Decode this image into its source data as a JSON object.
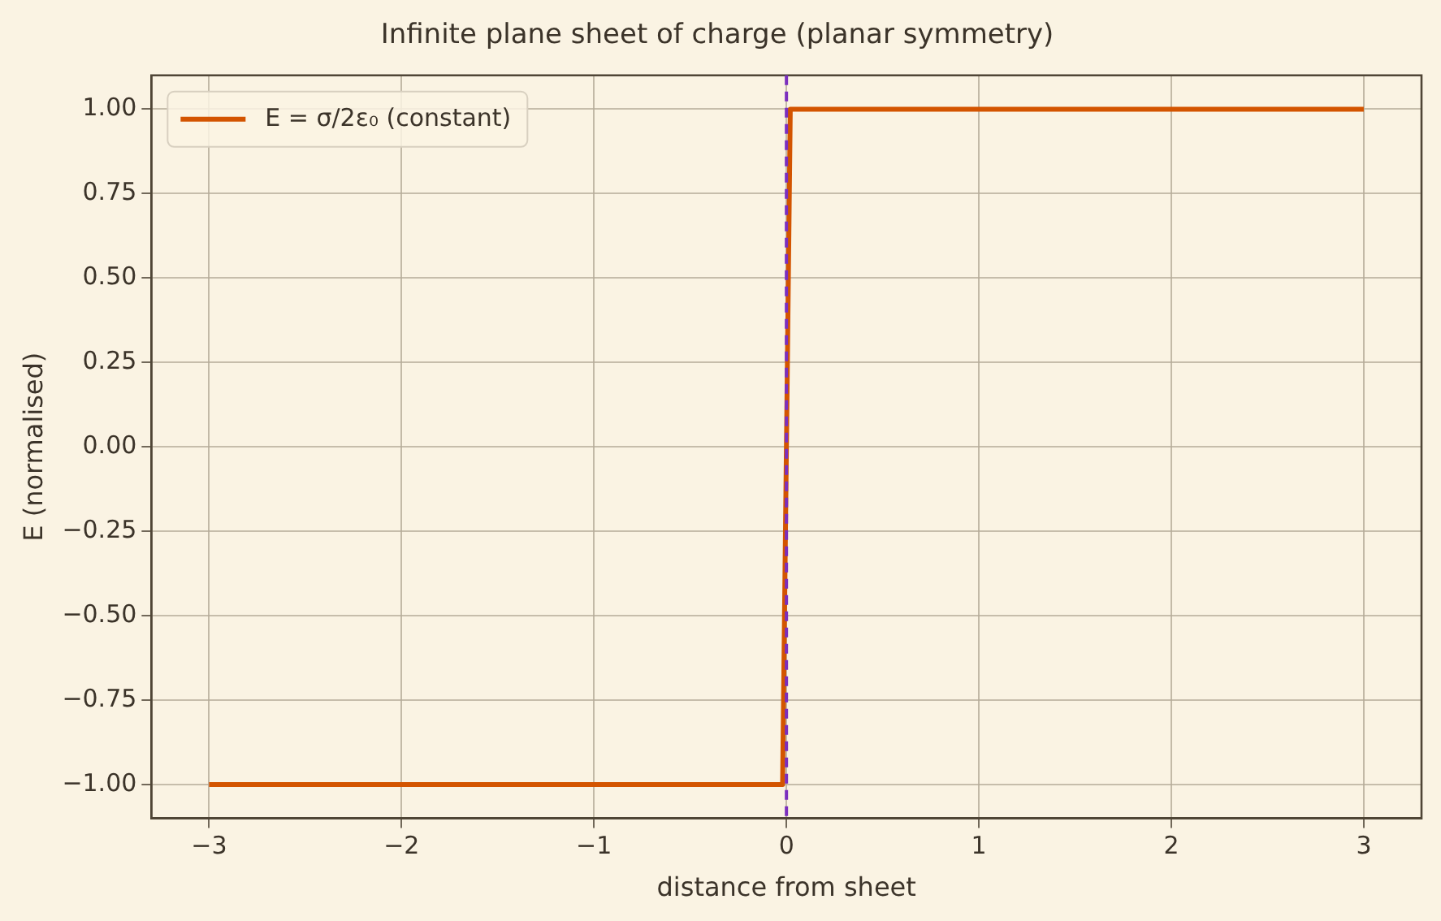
{
  "chart_data": {
    "type": "line",
    "title": "Infinite plane sheet of charge (planar symmetry)",
    "xlabel": "distance from sheet",
    "ylabel": "E (normalised)",
    "x": [
      -3,
      -0.02,
      0.02,
      3
    ],
    "series": [
      {
        "name": "E = σ/2ε₀ (constant)",
        "color": "#d35400",
        "values": [
          -1,
          -1,
          1,
          1
        ]
      }
    ],
    "xlim": [
      -3.3,
      3.3
    ],
    "xticks": [
      -3,
      -2,
      -1,
      0,
      1,
      2,
      3
    ],
    "ylim": [
      -1.1,
      1.1
    ],
    "yticks": [
      {
        "value": -1,
        "label": "−1.00"
      },
      {
        "value": -0.75,
        "label": "−0.75"
      },
      {
        "value": -0.5,
        "label": "−0.50"
      },
      {
        "value": -0.25,
        "label": "−0.25"
      },
      {
        "value": 0,
        "label": "0.00"
      },
      {
        "value": 0.25,
        "label": "0.25"
      },
      {
        "value": 0.5,
        "label": "0.50"
      },
      {
        "value": 0.75,
        "label": "0.75"
      },
      {
        "value": 1,
        "label": "1.00"
      }
    ],
    "ref_lines": [
      {
        "axis": "x",
        "value": 0,
        "color": "#7b2fbe",
        "line_style": "dashed"
      }
    ],
    "grid": true,
    "legend": "top left",
    "line_style": "solid",
    "marker": "none"
  }
}
